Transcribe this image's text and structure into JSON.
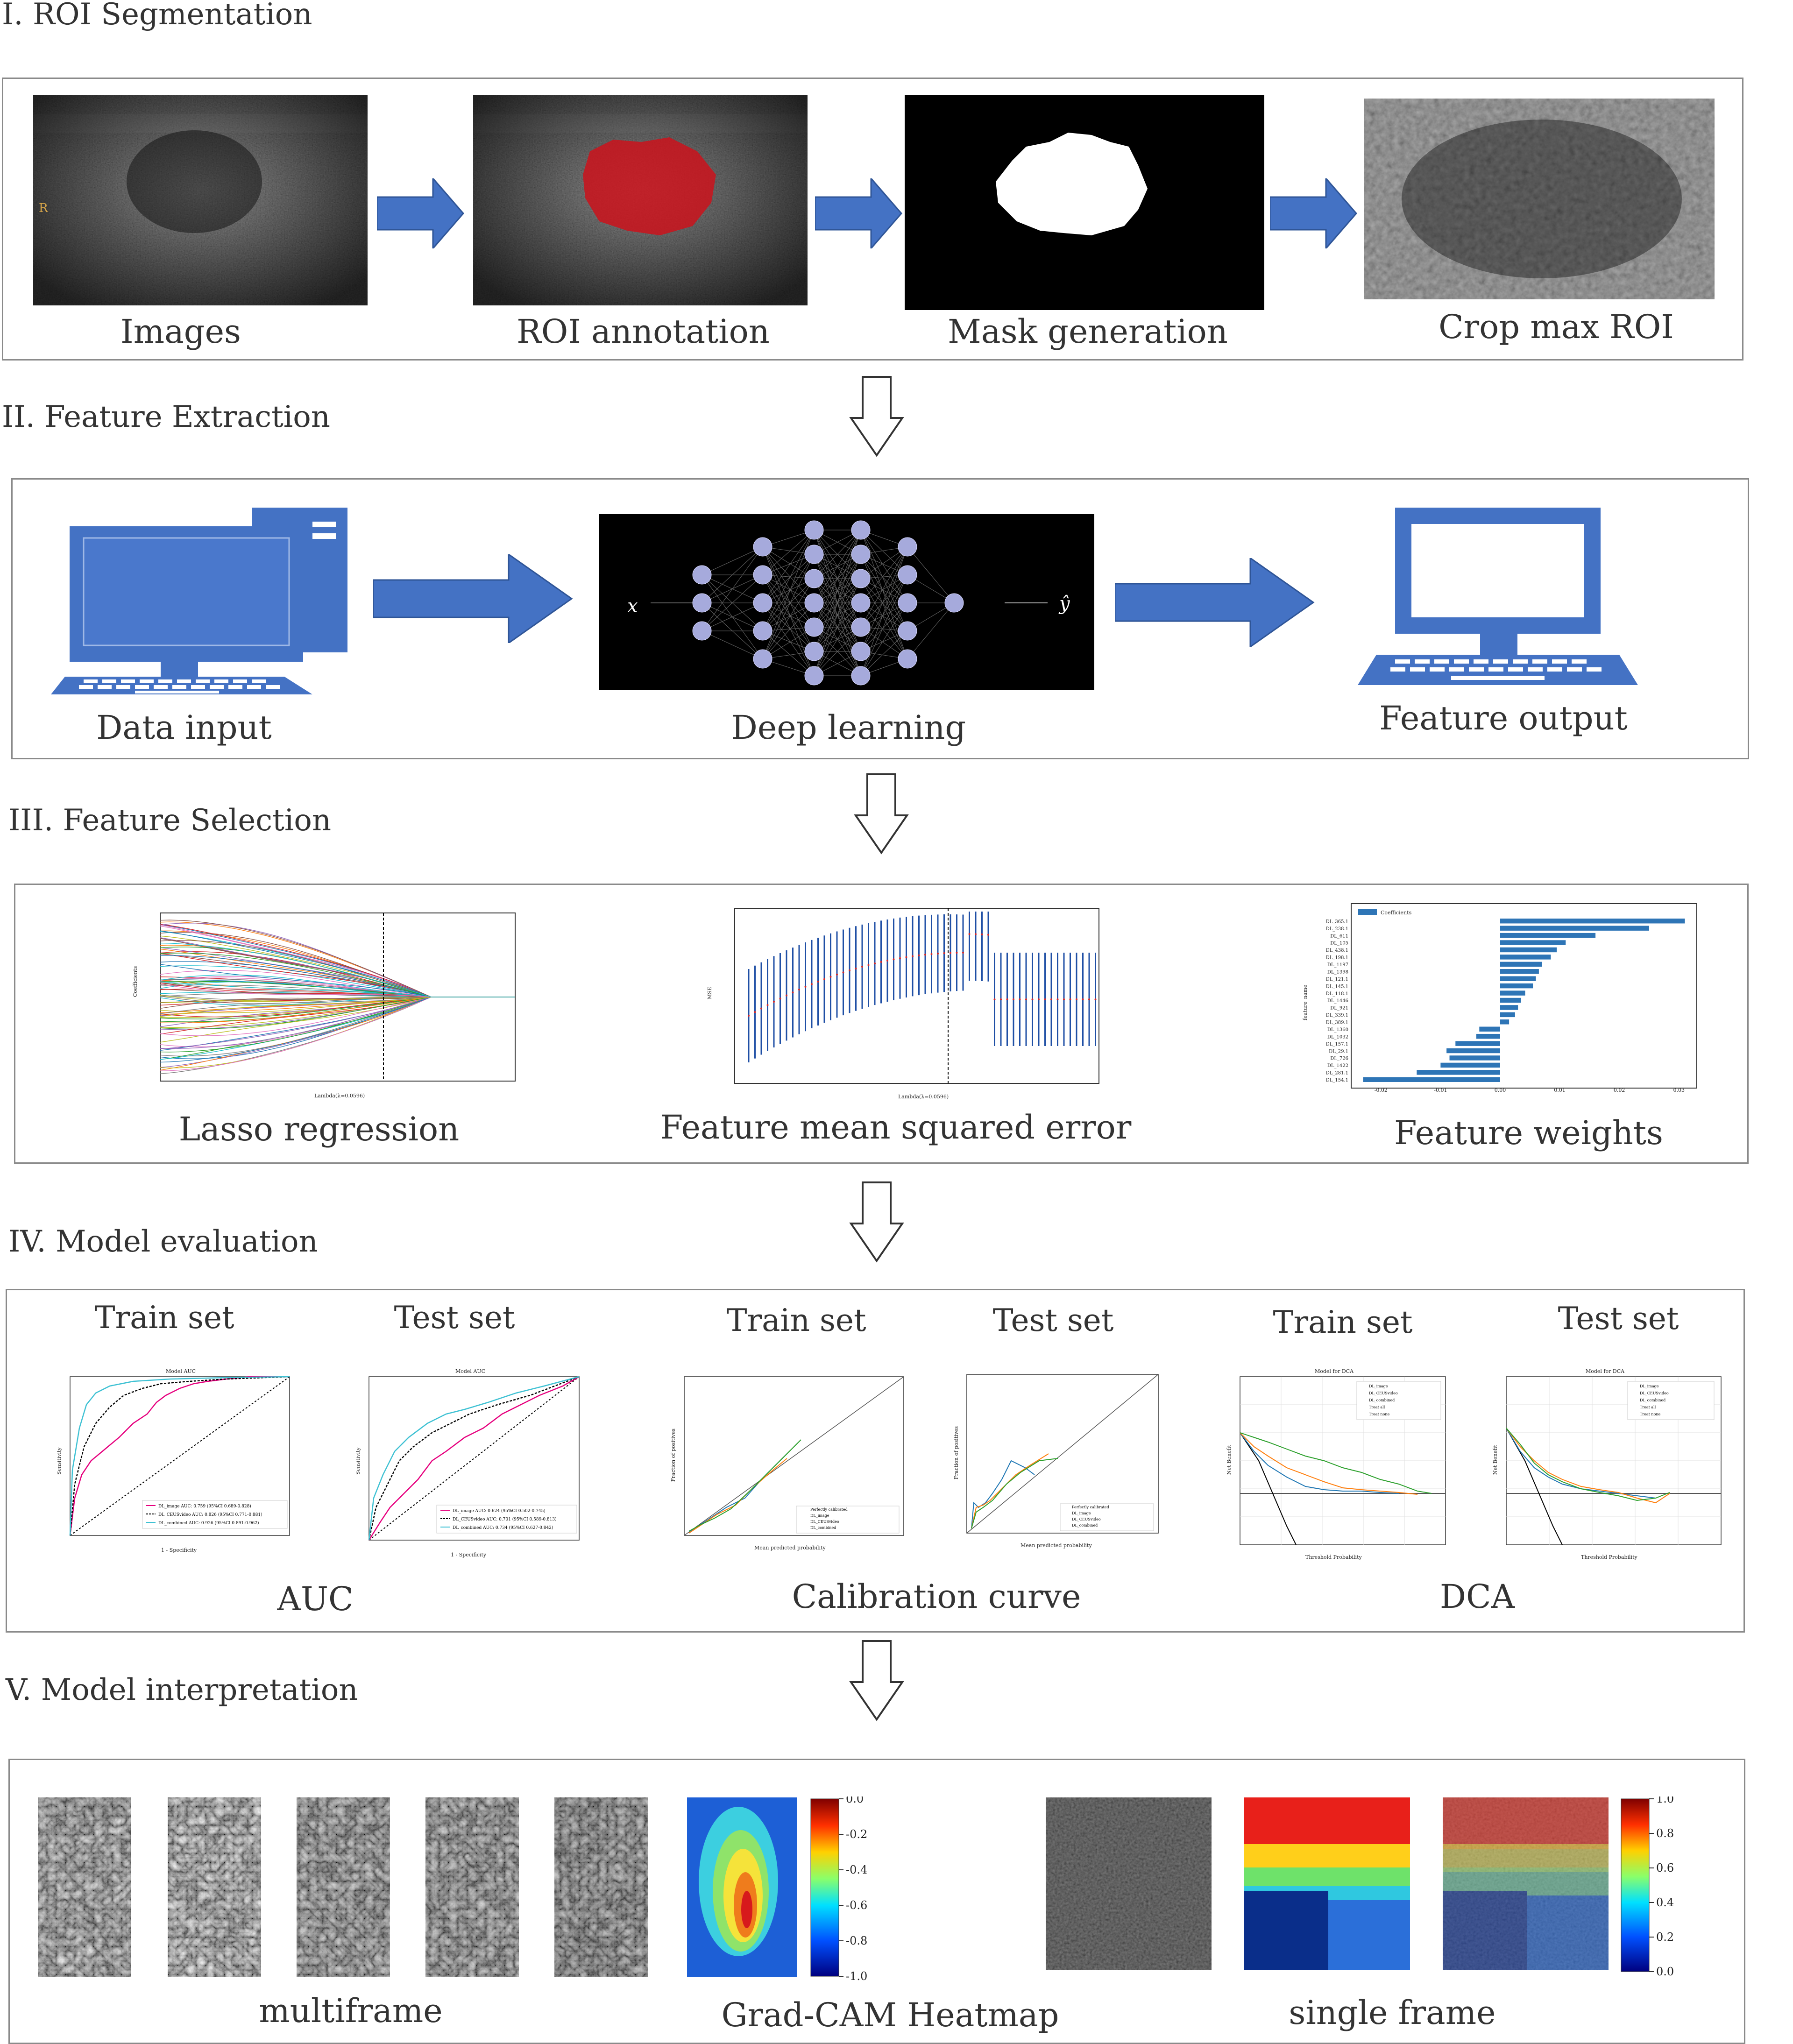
{
  "sections": {
    "s1": "I. ROI Segmentation",
    "s2": "II. Feature Extraction",
    "s3": "III. Feature Selection",
    "s4": "IV. Model evaluation",
    "s5": "V. Model interpretation"
  },
  "roi": {
    "images": "Images",
    "annotation": "ROI annotation",
    "mask": "Mask generation",
    "crop": "Crop max ROI",
    "orientation_marker": "R"
  },
  "extraction": {
    "input": "Data input",
    "dl": "Deep learning",
    "output": "Feature output",
    "x_symbol": "x",
    "y_symbol": "ŷ"
  },
  "selection": {
    "lasso": "Lasso regression",
    "mse": "Feature mean squared error",
    "weights": "Feature weights",
    "lasso_xlabel": "Lambda(λ=0.0596)",
    "lasso_ylabel": "Coefficients",
    "mse_xlabel": "Lambda(λ=0.0596)",
    "mse_ylabel": "MSE",
    "weights_ylabel": "feature_name",
    "weights_legend": "Coefficients"
  },
  "evaluation": {
    "train": "Train set",
    "test": "Test set",
    "auc": "AUC",
    "calibration": "Calibration curve",
    "dca": "DCA",
    "roc_title": "Model AUC",
    "roc_xlabel": "1 - Specificity",
    "roc_ylabel": "Sensitivity",
    "roc_train_legend": [
      "DL_image AUC: 0.759 (95%CI 0.689-0.828)",
      "DL_CEUSvideo AUC: 0.826 (95%CI 0.771-0.881)",
      "DL_combined AUC: 0.926 (95%CI 0.891-0.962)"
    ],
    "roc_test_legend": [
      "DL_image AUC: 0.624 (95%CI 0.502-0.745)",
      "DL_CEUSvideo AUC: 0.701 (95%CI 0.589-0.813)",
      "DL_combined AUC: 0.734 (95%CI 0.627-0.842)"
    ],
    "cal_xlabel": "Mean predicted probability",
    "cal_ylabel": "Fraction of positives",
    "cal_legend": [
      "Perfectly calibrated",
      "DL_image",
      "DL_CEUSvideo",
      "DL_combined"
    ],
    "dca_title": "Model for DCA",
    "dca_xlabel": "Threshold Probability",
    "dca_ylabel": "Net Benefit",
    "dca_legend": [
      "DL_image",
      "DL_CEUSvideo",
      "DL_combined",
      "Treat all",
      "Treat none"
    ]
  },
  "interpretation": {
    "multiframe": "multiframe",
    "gradcam": "Grad-CAM Heatmap",
    "single": "single frame",
    "cbar1_ticks": [
      "0.0",
      "-0.2",
      "-0.4",
      "-0.6",
      "-0.8",
      "-1.0"
    ],
    "cbar2_ticks": [
      "1.0",
      "0.8",
      "0.6",
      "0.4",
      "0.2",
      "0.0"
    ]
  },
  "chart_data": [
    {
      "type": "bar",
      "orientation": "horizontal",
      "ylabel": "feature_name",
      "legend": "Coefficients",
      "categories": [
        "DL_365.1",
        "DL_238.1",
        "DL_611",
        "DL_105",
        "DL_438.1",
        "DL_198.1",
        "DL_1197",
        "DL_1398",
        "DL_121.1",
        "DL_145.1",
        "DL_118.1",
        "DL_1446",
        "DL_921",
        "DL_339.1",
        "DL_389.1",
        "DL_1360",
        "DL_1032",
        "DL_157.1",
        "DL_29.1",
        "DL_726",
        "DL_1422",
        "DL_281.1",
        "DL_154.1"
      ],
      "values": [
        0.031,
        0.025,
        0.016,
        0.011,
        0.0095,
        0.0085,
        0.007,
        0.0065,
        0.006,
        0.0055,
        0.0042,
        0.0035,
        0.003,
        0.0025,
        0.0015,
        -0.0035,
        -0.004,
        -0.0075,
        -0.009,
        -0.0085,
        -0.01,
        -0.014,
        -0.023
      ],
      "xticks": [
        "-0.02",
        "-0.01",
        "0.00",
        "0.01",
        "0.02",
        "0.03"
      ],
      "xlim": [
        -0.025,
        0.033
      ]
    }
  ]
}
